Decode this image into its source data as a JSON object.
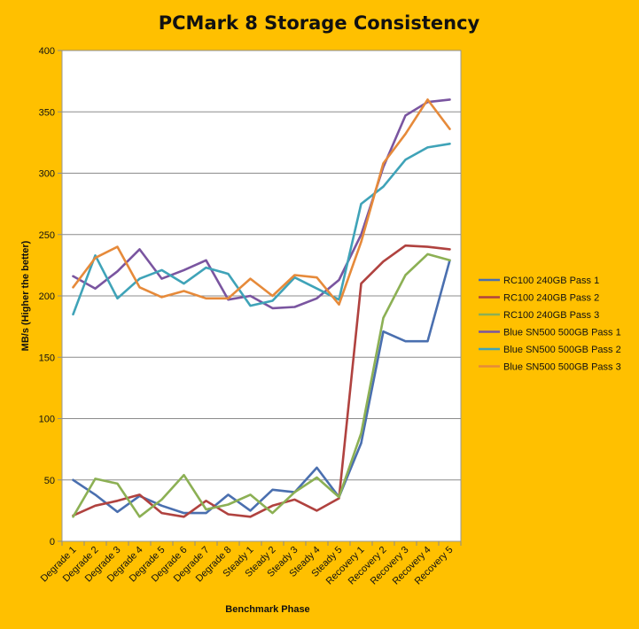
{
  "chart_data": {
    "type": "line",
    "title": "PCMark 8 Storage Consistency",
    "xlabel": "Benchmark Phase",
    "ylabel": "MB/s (Higher the better)",
    "ylim": [
      0,
      400
    ],
    "yticks": [
      0,
      50,
      100,
      150,
      200,
      250,
      300,
      350,
      400
    ],
    "grid": true,
    "legend_position": "right",
    "categories": [
      "Degrade 1",
      "Degrade 2",
      "Degrade 3",
      "Degrade 4",
      "Degrade 5",
      "Degrade 6",
      "Degrade 7",
      "Degrade 8",
      "Steady 1",
      "Steady 2",
      "Steady 3",
      "Steady 4",
      "Steady 5",
      "Recovery 1",
      "Recovery 2",
      "Recovery 3",
      "Recovery 4",
      "Recovery 5"
    ],
    "series": [
      {
        "name": "RC100 240GB Pass 1",
        "color": "#4A6FAF",
        "values": [
          50,
          38,
          24,
          37,
          29,
          23,
          23,
          38,
          25,
          42,
          40,
          60,
          36,
          80,
          171,
          163,
          163,
          229
        ]
      },
      {
        "name": "RC100 240GB Pass 2",
        "color": "#B0423F",
        "values": [
          21,
          29,
          33,
          38,
          23,
          20,
          33,
          22,
          20,
          29,
          34,
          25,
          35,
          210,
          228,
          241,
          240,
          238
        ]
      },
      {
        "name": "RC100 240GB Pass 3",
        "color": "#8CB054",
        "values": [
          20,
          51,
          47,
          20,
          34,
          54,
          26,
          30,
          38,
          23,
          40,
          52,
          36,
          88,
          182,
          217,
          234,
          229
        ]
      },
      {
        "name": "Blue SN500 500GB Pass 1",
        "color": "#7A55A0",
        "values": [
          216,
          206,
          220,
          238,
          214,
          221,
          229,
          197,
          200,
          190,
          191,
          198,
          213,
          250,
          305,
          347,
          358,
          360
        ]
      },
      {
        "name": "Blue SN500 500GB Pass 2",
        "color": "#3FA3B8",
        "values": [
          185,
          233,
          198,
          214,
          221,
          210,
          223,
          218,
          192,
          196,
          215,
          206,
          197,
          275,
          289,
          311,
          321,
          324
        ]
      },
      {
        "name": "Blue SN500 500GB Pass 3",
        "color": "#E68A3A",
        "values": [
          207,
          231,
          240,
          207,
          199,
          204,
          198,
          198,
          214,
          200,
          217,
          215,
          193,
          244,
          308,
          332,
          360,
          336
        ]
      }
    ]
  }
}
